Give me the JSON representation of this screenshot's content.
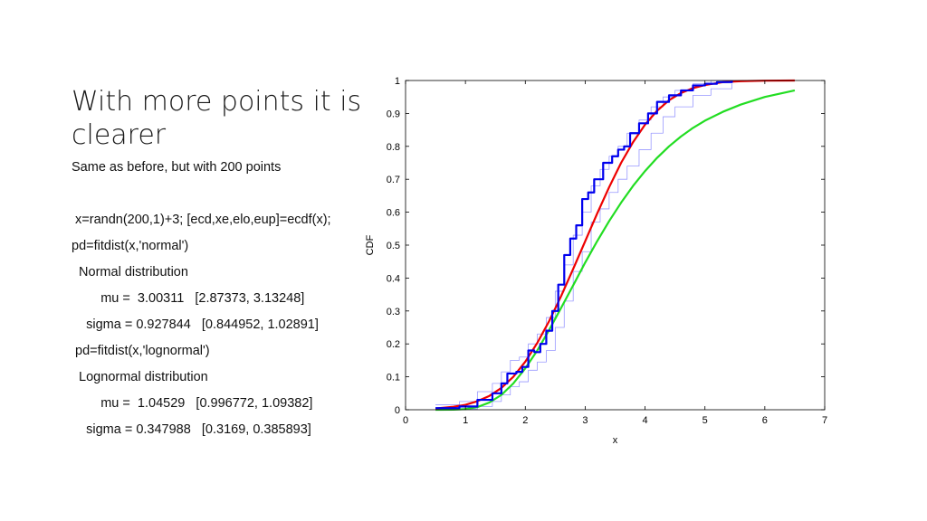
{
  "slide": {
    "title": "With more points it is clearer",
    "subtitle": "Same as before, but with 200 points",
    "lines": [
      " x=randn(200,1)+3; [ecd,xe,elo,eup]=ecdf(x);",
      "pd=fitdist(x,'normal')",
      "  Normal distribution",
      "        mu =  3.00311   [2.87373, 3.13248]",
      "    sigma = 0.927844   [0.844952, 1.02891]",
      " pd=fitdist(x,'lognormal')",
      "  Lognormal distribution",
      "        mu =  1.04529   [0.996772, 1.09382]",
      "    sigma = 0.347988   [0.3169, 0.385893]"
    ]
  },
  "chart_data": {
    "type": "line",
    "xlabel": "x",
    "ylabel": "CDF",
    "xlim": [
      0,
      7
    ],
    "ylim": [
      0,
      1
    ],
    "xticks": [
      0,
      1,
      2,
      3,
      4,
      5,
      6,
      7
    ],
    "yticks": [
      0,
      0.1,
      0.2,
      0.3,
      0.4,
      0.5,
      0.6,
      0.7,
      0.8,
      0.9,
      1
    ],
    "ytick_labels": [
      "0",
      "0.1",
      "0.2",
      "0.3",
      "0.4",
      "0.5",
      "0.6",
      "0.7",
      "0.8",
      "0.9",
      "1"
    ],
    "grid": false,
    "colors": {
      "empirical": "#0000ee",
      "bounds": "#9999ff",
      "normal": "#ee0000",
      "lognormal": "#22dd22"
    },
    "series": [
      {
        "color_key": "empirical",
        "kind": "step",
        "x": [
          0.5,
          0.9,
          1.2,
          1.45,
          1.6,
          1.7,
          1.85,
          1.95,
          2.05,
          2.15,
          2.25,
          2.35,
          2.45,
          2.55,
          2.65,
          2.75,
          2.85,
          2.95,
          3.05,
          3.15,
          3.3,
          3.45,
          3.55,
          3.65,
          3.75,
          3.9,
          4.05,
          4.2,
          4.4,
          4.6,
          4.8,
          5.0,
          5.2,
          5.45
        ],
        "y": [
          0.005,
          0.01,
          0.03,
          0.05,
          0.08,
          0.11,
          0.115,
          0.13,
          0.18,
          0.175,
          0.2,
          0.24,
          0.3,
          0.38,
          0.47,
          0.52,
          0.56,
          0.64,
          0.66,
          0.7,
          0.75,
          0.77,
          0.79,
          0.8,
          0.84,
          0.87,
          0.9,
          0.935,
          0.955,
          0.97,
          0.985,
          0.99,
          0.995,
          1.0
        ]
      },
      {
        "color_key": "bounds",
        "kind": "step",
        "x": [
          0.5,
          0.9,
          1.2,
          1.45,
          1.6,
          1.75,
          1.9,
          2.05,
          2.2,
          2.35,
          2.5,
          2.65,
          2.8,
          2.95,
          3.1,
          3.25,
          3.4,
          3.55,
          3.7,
          3.9,
          4.1,
          4.3,
          4.5,
          4.8,
          5.1,
          5.45
        ],
        "y": [
          0.0,
          0.002,
          0.01,
          0.025,
          0.045,
          0.07,
          0.085,
          0.12,
          0.145,
          0.18,
          0.25,
          0.33,
          0.42,
          0.48,
          0.57,
          0.61,
          0.66,
          0.7,
          0.74,
          0.79,
          0.84,
          0.89,
          0.92,
          0.955,
          0.975,
          0.99
        ]
      },
      {
        "color_key": "bounds",
        "kind": "step",
        "x": [
          0.5,
          0.9,
          1.2,
          1.45,
          1.6,
          1.75,
          1.9,
          2.05,
          2.2,
          2.35,
          2.5,
          2.65,
          2.8,
          2.95,
          3.1,
          3.25,
          3.4,
          3.55,
          3.7,
          3.9,
          4.1,
          4.3,
          4.5,
          4.8,
          5.1,
          5.45
        ],
        "y": [
          0.015,
          0.025,
          0.055,
          0.08,
          0.115,
          0.15,
          0.16,
          0.2,
          0.23,
          0.28,
          0.36,
          0.44,
          0.53,
          0.6,
          0.68,
          0.73,
          0.77,
          0.8,
          0.84,
          0.88,
          0.92,
          0.95,
          0.97,
          0.99,
          1.0,
          1.0
        ]
      },
      {
        "color_key": "normal",
        "kind": "line",
        "x": [
          0.5,
          0.8,
          1.0,
          1.2,
          1.4,
          1.6,
          1.8,
          2.0,
          2.2,
          2.4,
          2.6,
          2.8,
          3.0,
          3.2,
          3.4,
          3.6,
          3.8,
          4.0,
          4.2,
          4.4,
          4.6,
          4.8,
          5.0,
          5.3,
          5.6,
          6.0,
          6.5
        ],
        "y": [
          0.004,
          0.009,
          0.015,
          0.026,
          0.042,
          0.066,
          0.1,
          0.146,
          0.203,
          0.27,
          0.346,
          0.428,
          0.512,
          0.596,
          0.676,
          0.75,
          0.813,
          0.866,
          0.908,
          0.94,
          0.962,
          0.977,
          0.986,
          0.995,
          0.998,
          0.9995,
          1.0
        ]
      },
      {
        "color_key": "lognormal",
        "kind": "line",
        "x": [
          0.5,
          0.8,
          1.0,
          1.2,
          1.4,
          1.6,
          1.8,
          2.0,
          2.2,
          2.4,
          2.6,
          2.8,
          3.0,
          3.2,
          3.4,
          3.6,
          3.8,
          4.0,
          4.2,
          4.4,
          4.6,
          4.8,
          5.0,
          5.3,
          5.6,
          6.0,
          6.5
        ],
        "y": [
          0.0,
          0.0003,
          0.002,
          0.008,
          0.022,
          0.045,
          0.08,
          0.126,
          0.18,
          0.243,
          0.31,
          0.378,
          0.447,
          0.512,
          0.573,
          0.629,
          0.68,
          0.725,
          0.765,
          0.8,
          0.83,
          0.856,
          0.878,
          0.905,
          0.927,
          0.95,
          0.97
        ]
      }
    ]
  }
}
